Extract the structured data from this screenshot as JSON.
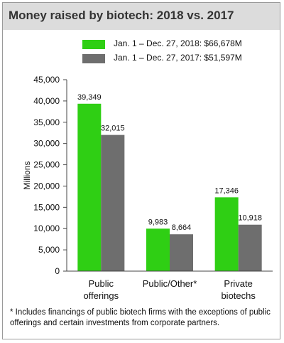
{
  "title": "Money raised by biotech: 2018 vs. 2017",
  "legend": [
    {
      "label": "Jan. 1 –  Dec. 27, 2018: $66,678M",
      "color": "#2fcf14"
    },
    {
      "label": "Jan. 1 –  Dec. 27, 2017: $51,597M",
      "color": "#6e6e6e"
    }
  ],
  "footnote": "* Includes financings of public biotech firms with the exceptions of public offerings and certain investments from corporate partners.",
  "chart_data": {
    "type": "bar",
    "title": "Money raised by biotech: 2018 vs. 2017",
    "ylabel": "Millions",
    "xlabel": "",
    "categories": [
      [
        "Public",
        "offerings"
      ],
      [
        "Public/Other*"
      ],
      [
        "Private",
        "biotechs"
      ]
    ],
    "series": [
      {
        "name": "Jan. 1 –  Dec. 27, 2018: $66,678M",
        "color": "#2fcf14",
        "values": [
          39349,
          9983,
          17346
        ],
        "labels": [
          "39,349",
          "9,983",
          "17,346"
        ]
      },
      {
        "name": "Jan. 1 –  Dec. 27, 2017: $51,597M",
        "color": "#6e6e6e",
        "values": [
          32015,
          8664,
          10918
        ],
        "labels": [
          "32,015",
          "8,664",
          "10,918"
        ]
      }
    ],
    "ylim": [
      0,
      45000
    ],
    "yticks": [
      0,
      5000,
      10000,
      15000,
      20000,
      25000,
      30000,
      35000,
      40000,
      45000
    ],
    "ytick_labels": [
      "0",
      "5,000",
      "10,000",
      "15,000",
      "20,000",
      "25,000",
      "30,000",
      "35,000",
      "40,000",
      "45,000"
    ],
    "grid": false,
    "legend_position": "top"
  }
}
